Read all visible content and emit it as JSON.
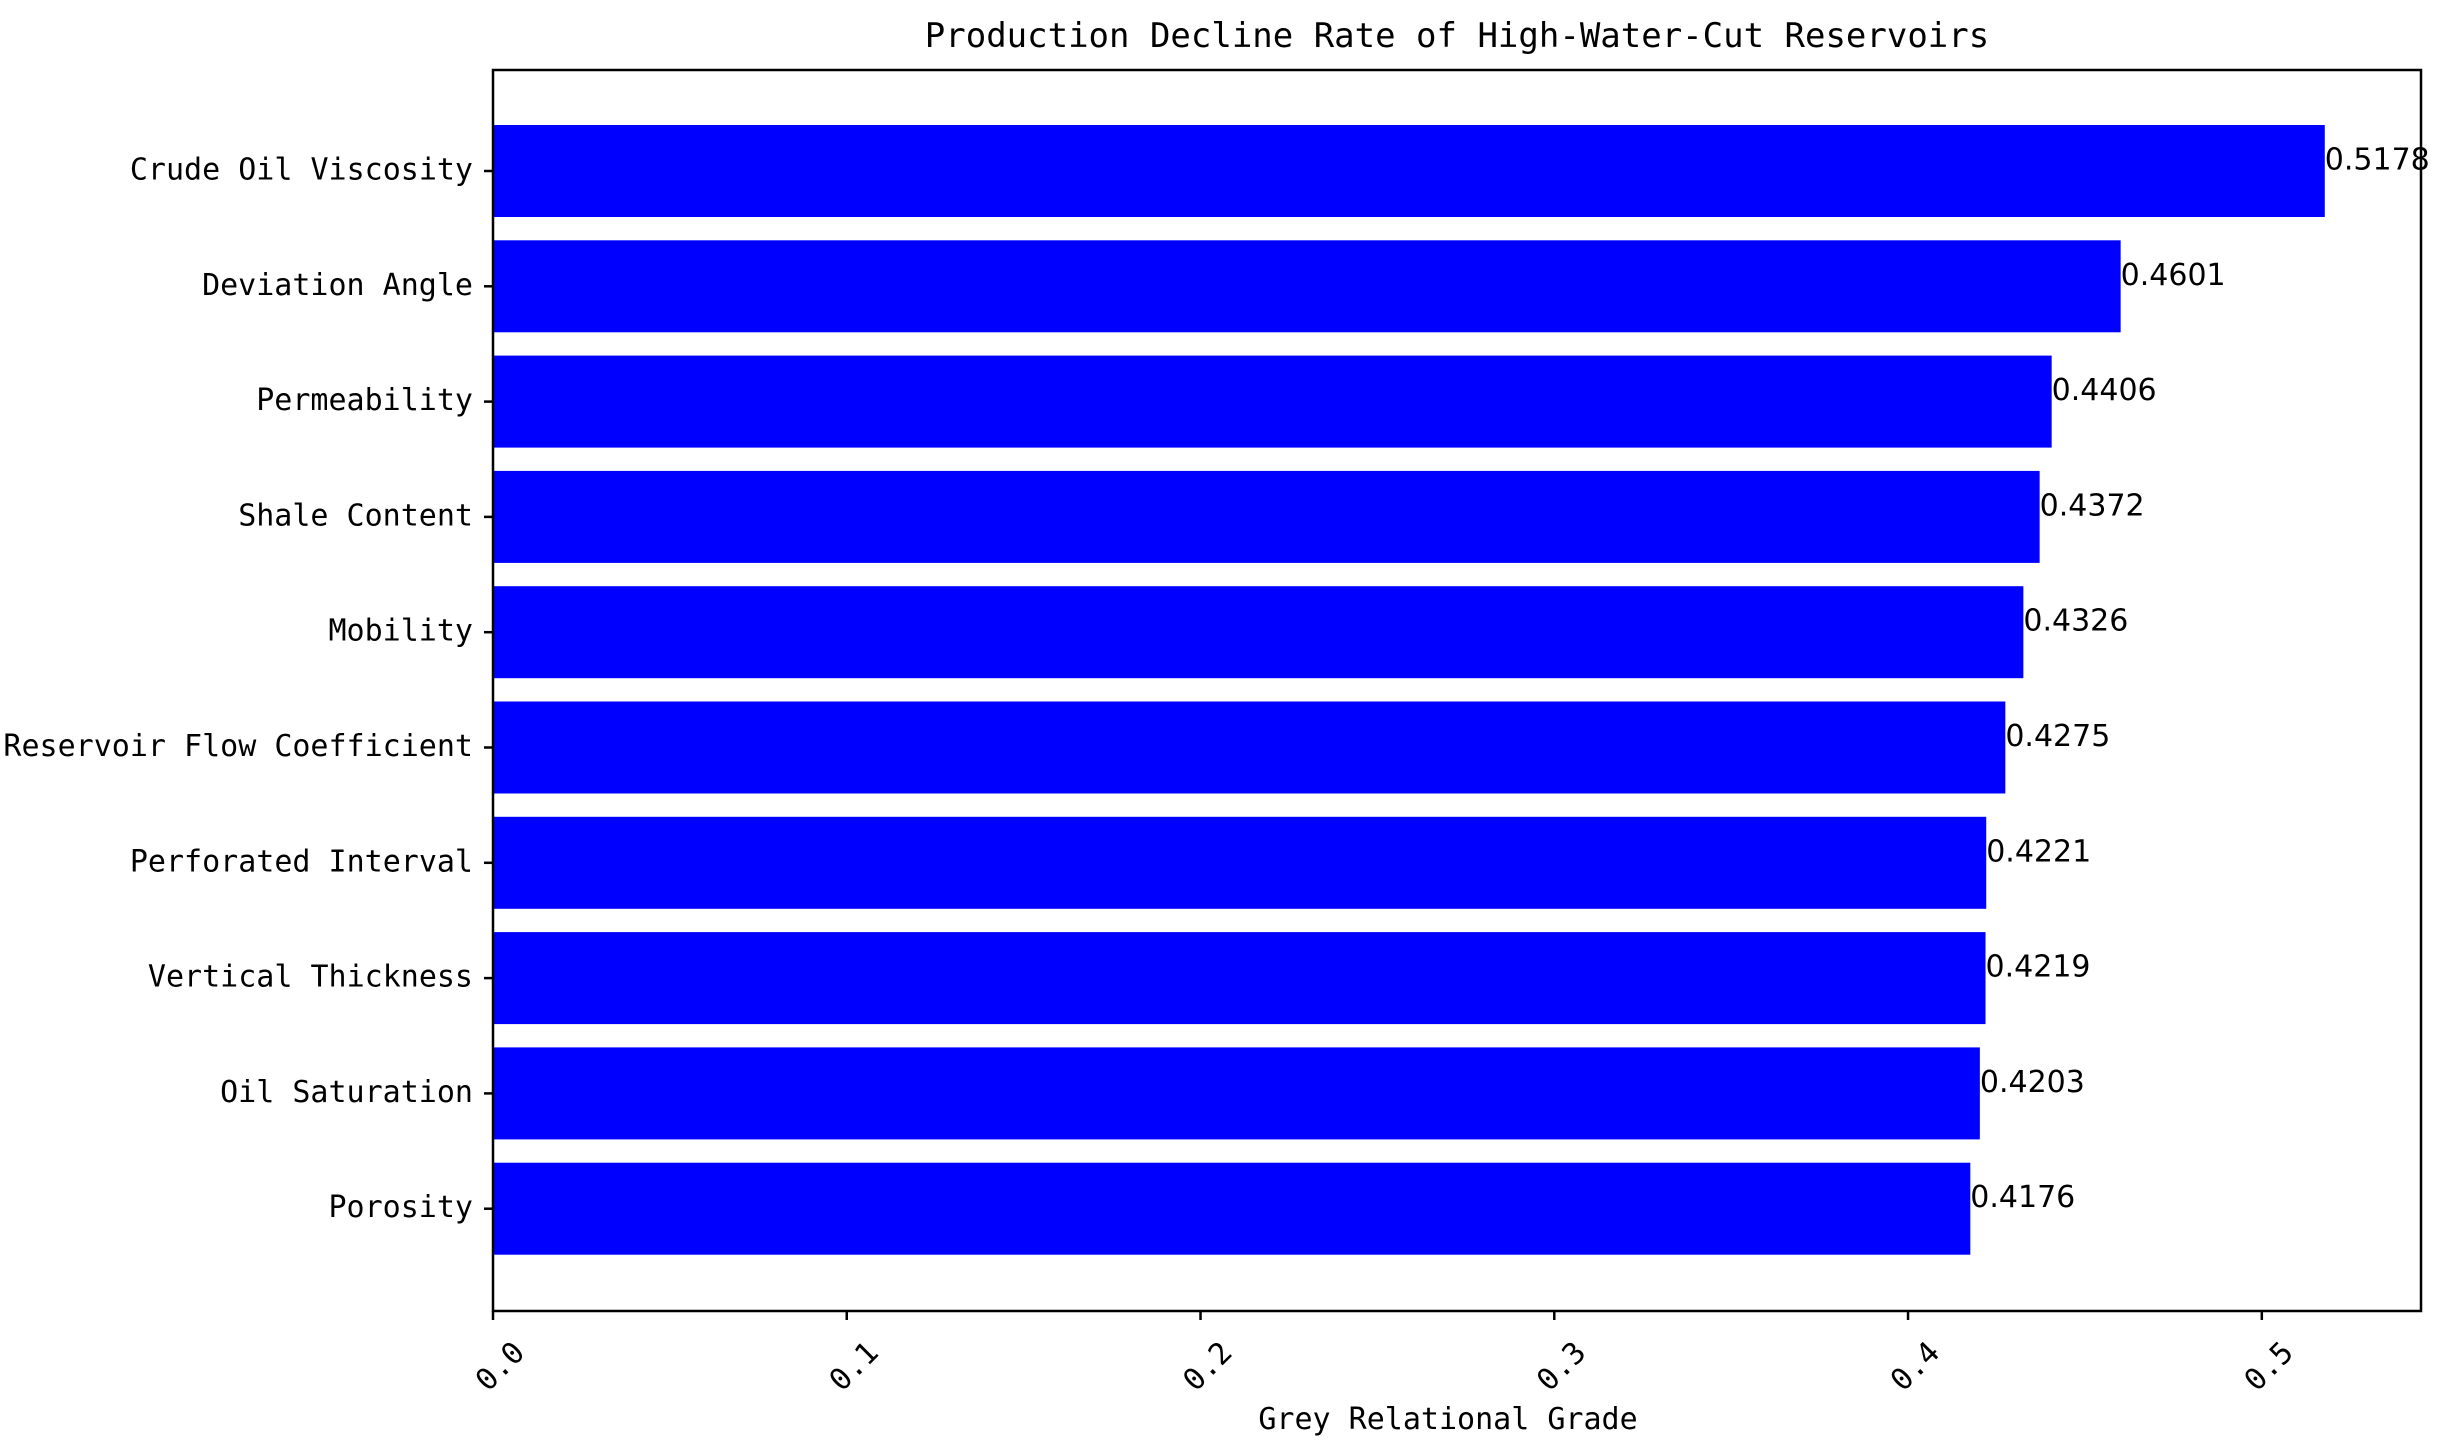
{
  "chart_data": {
    "type": "bar",
    "orientation": "horizontal",
    "title": "Production Decline Rate of High-Water-Cut Reservoirs",
    "xlabel": "Grey Relational Grade",
    "ylabel": "",
    "xlim": [
      0,
      0.545
    ],
    "xticks": [
      0.0,
      0.1,
      0.2,
      0.3,
      0.4,
      0.5
    ],
    "xtick_labels": [
      "0.0",
      "0.1",
      "0.2",
      "0.3",
      "0.4",
      "0.5"
    ],
    "tick_label_rotation_deg": 45,
    "grid": false,
    "bar_color": "#0000ff",
    "categories": [
      "Crude Oil Viscosity",
      "Deviation Angle",
      "Permeability",
      "Shale Content",
      "Mobility",
      "Reservoir Flow Coefficient",
      "Perforated Interval",
      "Vertical Thickness",
      "Oil Saturation",
      "Porosity"
    ],
    "values": [
      0.5178,
      0.4601,
      0.4406,
      0.4372,
      0.4326,
      0.4275,
      0.4221,
      0.4219,
      0.4203,
      0.4176
    ],
    "data_labels": [
      "0.5178",
      "0.4601",
      "0.4406",
      "0.4372",
      "0.4326",
      "0.4275",
      "0.4221",
      "0.4219",
      "0.4203",
      "0.4176"
    ]
  }
}
